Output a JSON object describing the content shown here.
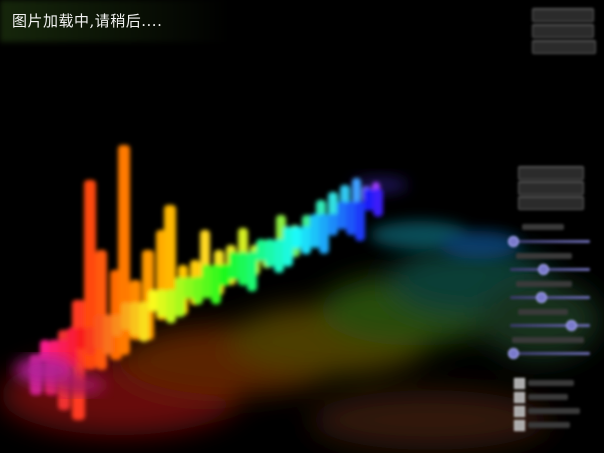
{
  "loading_text": "图片加载中,请稍后...."
}
